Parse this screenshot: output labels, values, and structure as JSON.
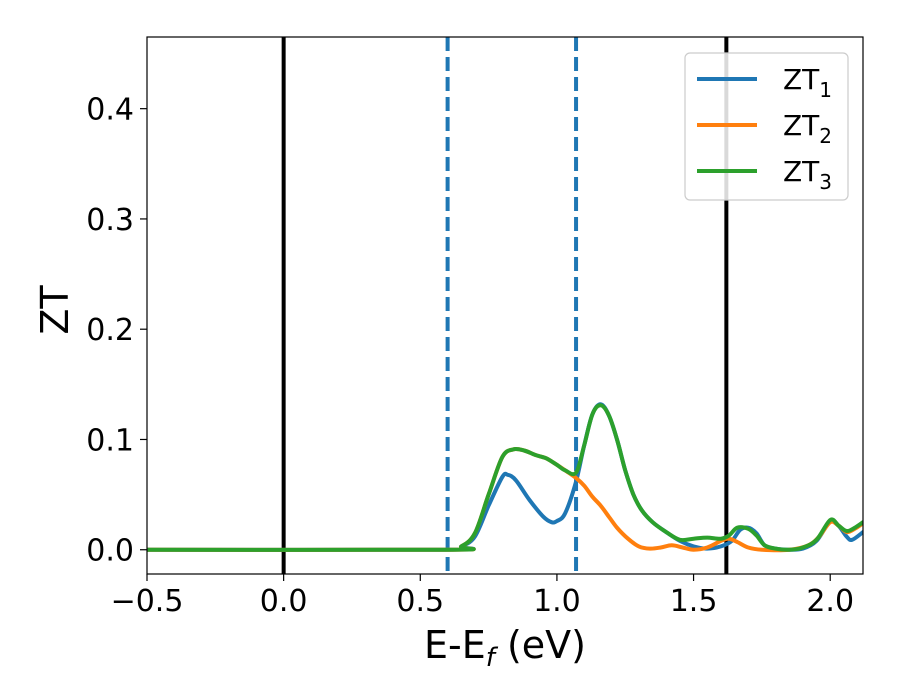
{
  "chart_data": {
    "type": "line",
    "xlabel": "E-E_f (eV)",
    "xlabel_parts": {
      "main": "E-E",
      "sub": "f",
      "tail": " (eV)"
    },
    "ylabel": "ZT",
    "xlim": [
      -0.5,
      2.12
    ],
    "ylim": [
      -0.022,
      0.465
    ],
    "xticks": [
      -0.5,
      0.0,
      0.5,
      1.0,
      1.5,
      2.0
    ],
    "xtick_labels": [
      "−0.5",
      "0.0",
      "0.5",
      "1.0",
      "1.5",
      "2.0"
    ],
    "yticks": [
      0.0,
      0.1,
      0.2,
      0.3,
      0.4
    ],
    "ytick_labels": [
      "0.0",
      "0.1",
      "0.2",
      "0.3",
      "0.4"
    ],
    "grid": false,
    "legend_position": "top-right",
    "vlines": [
      {
        "x": 0.0,
        "style": "solid",
        "color": "#000000"
      },
      {
        "x": 1.62,
        "style": "solid",
        "color": "#000000"
      },
      {
        "x": 0.6,
        "style": "dashed",
        "color": "#1f77b4"
      },
      {
        "x": 1.07,
        "style": "dashed",
        "color": "#1f77b4"
      }
    ],
    "series": [
      {
        "name": "ZT_1",
        "label_main": "ZT",
        "label_sub": "1",
        "color": "#1f77b4",
        "points": [
          [
            -0.5,
            0
          ],
          [
            0.6,
            0
          ],
          [
            0.65,
            0.003
          ],
          [
            0.7,
            0.012
          ],
          [
            0.75,
            0.04
          ],
          [
            0.8,
            0.066
          ],
          [
            0.82,
            0.068
          ],
          [
            0.85,
            0.063
          ],
          [
            0.9,
            0.045
          ],
          [
            0.95,
            0.03
          ],
          [
            0.98,
            0.025
          ],
          [
            1.0,
            0.026
          ],
          [
            1.03,
            0.033
          ],
          [
            1.07,
            0.062
          ],
          [
            1.1,
            0.095
          ],
          [
            1.13,
            0.123
          ],
          [
            1.16,
            0.132
          ],
          [
            1.19,
            0.122
          ],
          [
            1.22,
            0.1
          ],
          [
            1.25,
            0.072
          ],
          [
            1.28,
            0.05
          ],
          [
            1.31,
            0.036
          ],
          [
            1.35,
            0.025
          ],
          [
            1.4,
            0.016
          ],
          [
            1.45,
            0.008
          ],
          [
            1.5,
            0.003
          ],
          [
            1.55,
            0.001
          ],
          [
            1.6,
            0.003
          ],
          [
            1.64,
            0.008
          ],
          [
            1.67,
            0.018
          ],
          [
            1.7,
            0.02
          ],
          [
            1.73,
            0.015
          ],
          [
            1.76,
            0.004
          ],
          [
            1.8,
            0.001
          ],
          [
            1.85,
            0.0
          ],
          [
            1.9,
            0.001
          ],
          [
            1.95,
            0.008
          ],
          [
            2.0,
            0.026
          ],
          [
            2.03,
            0.022
          ],
          [
            2.06,
            0.012
          ],
          [
            2.08,
            0.009
          ],
          [
            2.12,
            0.016
          ]
        ]
      },
      {
        "name": "ZT_2",
        "label_main": "ZT",
        "label_sub": "2",
        "color": "#ff7f0e",
        "points": [
          [
            -0.5,
            0
          ],
          [
            0.6,
            0
          ],
          [
            0.65,
            0.003
          ],
          [
            0.7,
            0.015
          ],
          [
            0.75,
            0.05
          ],
          [
            0.8,
            0.084
          ],
          [
            0.84,
            0.091
          ],
          [
            0.88,
            0.09
          ],
          [
            0.92,
            0.086
          ],
          [
            0.96,
            0.083
          ],
          [
            1.0,
            0.077
          ],
          [
            1.03,
            0.072
          ],
          [
            1.07,
            0.065
          ],
          [
            1.1,
            0.058
          ],
          [
            1.13,
            0.048
          ],
          [
            1.16,
            0.04
          ],
          [
            1.19,
            0.03
          ],
          [
            1.22,
            0.02
          ],
          [
            1.26,
            0.01
          ],
          [
            1.3,
            0.003
          ],
          [
            1.34,
            0.001
          ],
          [
            1.38,
            0.002
          ],
          [
            1.42,
            0.004
          ],
          [
            1.46,
            0.002
          ],
          [
            1.5,
            0.0
          ],
          [
            1.55,
            0.002
          ],
          [
            1.6,
            0.008
          ],
          [
            1.63,
            0.01
          ],
          [
            1.66,
            0.007
          ],
          [
            1.7,
            0.002
          ],
          [
            1.75,
            0.0
          ],
          [
            1.85,
            0.0
          ],
          [
            1.92,
            0.004
          ],
          [
            1.96,
            0.012
          ],
          [
            2.0,
            0.025
          ],
          [
            2.03,
            0.022
          ],
          [
            2.06,
            0.016
          ],
          [
            2.09,
            0.019
          ],
          [
            2.12,
            0.024
          ]
        ]
      },
      {
        "name": "ZT_3",
        "label_main": "ZT",
        "label_sub": "3",
        "color": "#2ca02c",
        "points": [
          [
            -0.5,
            0
          ],
          [
            0.6,
            0
          ],
          [
            0.65,
            0.003
          ],
          [
            0.7,
            0.015
          ],
          [
            0.75,
            0.05
          ],
          [
            0.8,
            0.084
          ],
          [
            0.84,
            0.091
          ],
          [
            0.88,
            0.09
          ],
          [
            0.92,
            0.086
          ],
          [
            0.96,
            0.083
          ],
          [
            1.0,
            0.077
          ],
          [
            1.03,
            0.072
          ],
          [
            1.07,
            0.07
          ],
          [
            1.1,
            0.095
          ],
          [
            1.13,
            0.123
          ],
          [
            1.16,
            0.131
          ],
          [
            1.19,
            0.122
          ],
          [
            1.22,
            0.1
          ],
          [
            1.25,
            0.072
          ],
          [
            1.28,
            0.05
          ],
          [
            1.31,
            0.036
          ],
          [
            1.35,
            0.025
          ],
          [
            1.4,
            0.016
          ],
          [
            1.45,
            0.009
          ],
          [
            1.5,
            0.01
          ],
          [
            1.55,
            0.011
          ],
          [
            1.6,
            0.01
          ],
          [
            1.63,
            0.013
          ],
          [
            1.66,
            0.02
          ],
          [
            1.7,
            0.019
          ],
          [
            1.73,
            0.013
          ],
          [
            1.76,
            0.004
          ],
          [
            1.8,
            0.001
          ],
          [
            1.85,
            0.0
          ],
          [
            1.9,
            0.002
          ],
          [
            1.95,
            0.009
          ],
          [
            2.0,
            0.027
          ],
          [
            2.03,
            0.022
          ],
          [
            2.06,
            0.017
          ],
          [
            2.09,
            0.02
          ],
          [
            2.12,
            0.025
          ]
        ]
      }
    ]
  }
}
